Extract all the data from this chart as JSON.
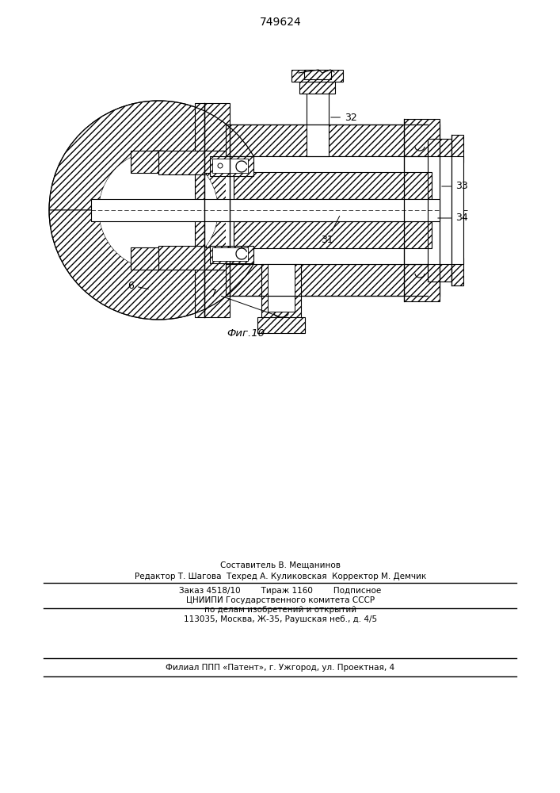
{
  "title": "749624",
  "fig_label": "Фиг.10",
  "footer_lines": [
    "Составитель В. Мещанинов",
    "Редактор Т. Шагова  Техред А. Куликовская  Корректор М. Демчик",
    "Заказ 4518/10        Тираж 1160        Подписное",
    "ЦНИИПИ Государственного комитета СССР",
    "по делам изобретений и открытий",
    "113035, Москва, Ж-35, Раушская неб., д. 4/5",
    "Филиал ППП «Патент», г. Ужгород, ул. Проектная, 4"
  ],
  "bg_color": "#ffffff",
  "line_color": "#000000"
}
